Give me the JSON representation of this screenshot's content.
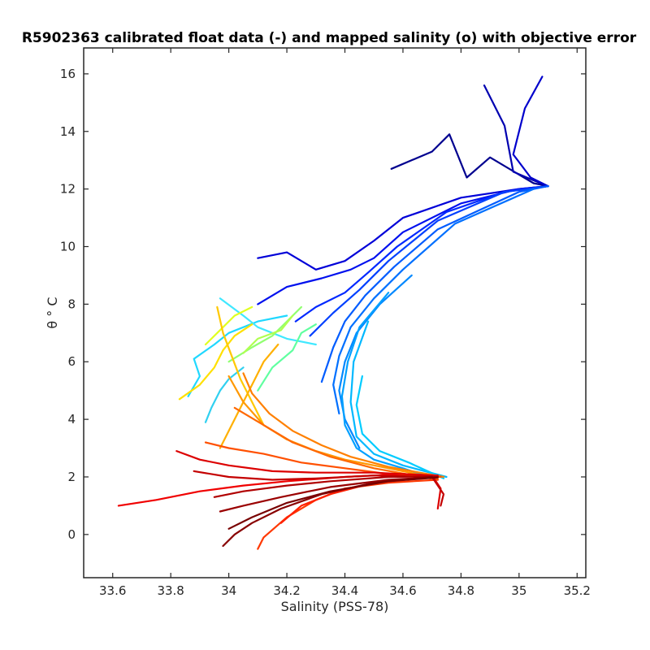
{
  "chart_data": {
    "type": "line",
    "title": "R5902363 calibrated float data (-) and mapped salinity (o) with objective error",
    "xlabel": "Salinity (PSS-78)",
    "ylabel": "θ ° C",
    "xlim": [
      33.5,
      35.23
    ],
    "ylim": [
      -1.5,
      16.9
    ],
    "xticks": [
      33.6,
      33.8,
      34,
      34.2,
      34.4,
      34.6,
      34.8,
      35,
      35.2
    ],
    "yticks": [
      0,
      2,
      4,
      6,
      8,
      10,
      12,
      14,
      16
    ],
    "grid": false,
    "legend": "none",
    "colormap": "jet",
    "series": [
      {
        "color": "#00008f",
        "points": [
          [
            34.56,
            12.7
          ],
          [
            34.7,
            13.3
          ],
          [
            34.76,
            13.9
          ],
          [
            34.82,
            12.4
          ],
          [
            34.9,
            13.1
          ],
          [
            35.0,
            12.5
          ],
          [
            35.05,
            12.2
          ],
          [
            35.1,
            12.1
          ]
        ]
      },
      {
        "color": "#0000b0",
        "points": [
          [
            34.88,
            15.6
          ],
          [
            34.95,
            14.2
          ],
          [
            34.98,
            12.6
          ],
          [
            35.05,
            12.3
          ],
          [
            35.1,
            12.1
          ]
        ]
      },
      {
        "color": "#0000cc",
        "points": [
          [
            35.08,
            15.9
          ],
          [
            35.02,
            14.8
          ],
          [
            34.98,
            13.2
          ],
          [
            35.04,
            12.4
          ],
          [
            35.1,
            12.1
          ]
        ]
      },
      {
        "color": "#0000d8",
        "points": [
          [
            34.1,
            9.6
          ],
          [
            34.2,
            9.8
          ],
          [
            34.3,
            9.2
          ],
          [
            34.4,
            9.5
          ],
          [
            34.5,
            10.2
          ],
          [
            34.6,
            11.0
          ],
          [
            34.8,
            11.7
          ],
          [
            35.0,
            12.0
          ],
          [
            35.1,
            12.1
          ]
        ]
      },
      {
        "color": "#0010ee",
        "points": [
          [
            34.1,
            8.0
          ],
          [
            34.2,
            8.6
          ],
          [
            34.32,
            8.9
          ],
          [
            34.42,
            9.2
          ],
          [
            34.5,
            9.6
          ],
          [
            34.6,
            10.5
          ],
          [
            34.8,
            11.5
          ],
          [
            35.0,
            12.0
          ],
          [
            35.1,
            12.1
          ]
        ]
      },
      {
        "color": "#0028ff",
        "points": [
          [
            34.23,
            7.4
          ],
          [
            34.3,
            7.9
          ],
          [
            34.4,
            8.4
          ],
          [
            34.48,
            9.1
          ],
          [
            34.58,
            10.0
          ],
          [
            34.75,
            11.2
          ],
          [
            34.95,
            11.9
          ],
          [
            35.1,
            12.1
          ]
        ]
      },
      {
        "color": "#0040ff",
        "points": [
          [
            34.28,
            6.9
          ],
          [
            34.36,
            7.7
          ],
          [
            34.45,
            8.5
          ],
          [
            34.55,
            9.5
          ],
          [
            34.72,
            10.9
          ],
          [
            34.95,
            11.9
          ],
          [
            35.1,
            12.1
          ]
        ]
      },
      {
        "color": "#005cff",
        "points": [
          [
            34.32,
            5.3
          ],
          [
            34.36,
            6.5
          ],
          [
            34.4,
            7.4
          ],
          [
            34.47,
            8.3
          ],
          [
            34.57,
            9.3
          ],
          [
            34.72,
            10.6
          ],
          [
            35.0,
            11.9
          ],
          [
            35.1,
            12.1
          ]
        ]
      },
      {
        "color": "#0070ff",
        "points": [
          [
            34.38,
            4.2
          ],
          [
            34.36,
            5.2
          ],
          [
            34.38,
            6.2
          ],
          [
            34.42,
            7.2
          ],
          [
            34.5,
            8.2
          ],
          [
            34.6,
            9.2
          ],
          [
            34.78,
            10.8
          ],
          [
            35.05,
            12.0
          ]
        ]
      },
      {
        "color": "#0088ff",
        "points": [
          [
            34.45,
            3.0
          ],
          [
            34.4,
            4.0
          ],
          [
            34.38,
            5.0
          ],
          [
            34.4,
            6.0
          ],
          [
            34.44,
            7.0
          ],
          [
            34.52,
            8.0
          ],
          [
            34.63,
            9.0
          ]
        ]
      },
      {
        "color": "#00a0ff",
        "points": [
          [
            34.72,
            1.9
          ],
          [
            34.6,
            2.3
          ],
          [
            34.5,
            2.6
          ],
          [
            34.44,
            3.0
          ],
          [
            34.4,
            3.8
          ],
          [
            34.39,
            4.8
          ],
          [
            34.41,
            6.0
          ],
          [
            34.45,
            7.2
          ],
          [
            34.55,
            8.4
          ]
        ]
      },
      {
        "color": "#00b8ff",
        "points": [
          [
            34.75,
            2.0
          ],
          [
            34.6,
            2.4
          ],
          [
            34.5,
            2.8
          ],
          [
            34.44,
            3.4
          ],
          [
            34.42,
            4.6
          ],
          [
            34.43,
            6.0
          ],
          [
            34.48,
            7.4
          ]
        ]
      },
      {
        "color": "#00ccff",
        "points": [
          [
            34.74,
            1.95
          ],
          [
            34.62,
            2.5
          ],
          [
            34.52,
            2.9
          ],
          [
            34.46,
            3.5
          ],
          [
            34.44,
            4.5
          ],
          [
            34.46,
            5.5
          ]
        ]
      },
      {
        "color": "#20d8ff",
        "points": [
          [
            33.86,
            4.8
          ],
          [
            33.9,
            5.5
          ],
          [
            33.88,
            6.1
          ],
          [
            33.95,
            6.6
          ],
          [
            34.0,
            7.0
          ],
          [
            34.1,
            7.4
          ],
          [
            34.2,
            7.6
          ]
        ]
      },
      {
        "color": "#40e8ff",
        "points": [
          [
            33.97,
            8.2
          ],
          [
            34.05,
            7.6
          ],
          [
            34.1,
            7.2
          ],
          [
            34.2,
            6.8
          ],
          [
            34.3,
            6.6
          ]
        ]
      },
      {
        "color": "#30d0f0",
        "points": [
          [
            33.92,
            3.9
          ],
          [
            33.94,
            4.4
          ],
          [
            33.97,
            5.0
          ],
          [
            34.0,
            5.4
          ],
          [
            34.05,
            5.8
          ]
        ]
      },
      {
        "color": "#60ffa0",
        "points": [
          [
            34.1,
            5.0
          ],
          [
            34.15,
            5.8
          ],
          [
            34.22,
            6.4
          ],
          [
            34.25,
            7.0
          ],
          [
            34.3,
            7.3
          ]
        ]
      },
      {
        "color": "#90ff70",
        "points": [
          [
            34.0,
            6.0
          ],
          [
            34.08,
            6.5
          ],
          [
            34.15,
            6.9
          ],
          [
            34.2,
            7.4
          ],
          [
            34.25,
            7.9
          ]
        ]
      },
      {
        "color": "#b0ff50",
        "points": [
          [
            34.05,
            6.3
          ],
          [
            34.1,
            6.8
          ],
          [
            34.18,
            7.1
          ],
          [
            34.22,
            7.6
          ]
        ]
      },
      {
        "color": "#e0ff20",
        "points": [
          [
            33.92,
            6.6
          ],
          [
            33.97,
            7.1
          ],
          [
            34.02,
            7.6
          ],
          [
            34.08,
            7.9
          ]
        ]
      },
      {
        "color": "#ffe000",
        "points": [
          [
            33.83,
            4.7
          ],
          [
            33.9,
            5.2
          ],
          [
            33.95,
            5.8
          ],
          [
            33.98,
            6.4
          ],
          [
            34.02,
            6.9
          ],
          [
            34.08,
            7.3
          ]
        ]
      },
      {
        "color": "#ffc800",
        "points": [
          [
            33.96,
            7.9
          ],
          [
            33.98,
            7.0
          ],
          [
            34.01,
            6.2
          ],
          [
            34.04,
            5.4
          ],
          [
            34.08,
            4.6
          ],
          [
            34.12,
            3.8
          ]
        ]
      },
      {
        "color": "#ffb000",
        "points": [
          [
            33.97,
            3.0
          ],
          [
            34.0,
            3.6
          ],
          [
            34.04,
            4.4
          ],
          [
            34.08,
            5.2
          ],
          [
            34.12,
            6.0
          ],
          [
            34.17,
            6.6
          ]
        ]
      },
      {
        "color": "#ff9800",
        "points": [
          [
            34.72,
            1.95
          ],
          [
            34.55,
            2.3
          ],
          [
            34.4,
            2.6
          ],
          [
            34.3,
            2.9
          ],
          [
            34.2,
            3.3
          ],
          [
            34.12,
            3.8
          ],
          [
            34.05,
            4.6
          ],
          [
            34.0,
            5.5
          ]
        ]
      },
      {
        "color": "#ff8000",
        "points": [
          [
            34.74,
            2.0
          ],
          [
            34.55,
            2.35
          ],
          [
            34.42,
            2.7
          ],
          [
            34.32,
            3.1
          ],
          [
            34.22,
            3.6
          ],
          [
            34.14,
            4.2
          ],
          [
            34.08,
            4.9
          ],
          [
            34.05,
            5.6
          ]
        ]
      },
      {
        "color": "#ff6800",
        "points": [
          [
            34.72,
            1.9
          ],
          [
            34.5,
            2.3
          ],
          [
            34.35,
            2.7
          ],
          [
            34.22,
            3.2
          ],
          [
            34.12,
            3.8
          ],
          [
            34.02,
            4.4
          ]
        ]
      },
      {
        "color": "#ff5000",
        "points": [
          [
            34.73,
            2.0
          ],
          [
            34.55,
            2.1
          ],
          [
            34.4,
            2.3
          ],
          [
            34.25,
            2.5
          ],
          [
            34.12,
            2.8
          ],
          [
            34.0,
            3.0
          ],
          [
            33.92,
            3.2
          ]
        ]
      },
      {
        "color": "#ff3800",
        "points": [
          [
            34.72,
            1.9
          ],
          [
            34.55,
            1.8
          ],
          [
            34.4,
            1.6
          ],
          [
            34.3,
            1.2
          ],
          [
            34.2,
            0.6
          ],
          [
            34.12,
            -0.1
          ],
          [
            34.1,
            -0.5
          ]
        ]
      },
      {
        "color": "#ff2000",
        "points": [
          [
            34.71,
            2.0
          ],
          [
            34.5,
            1.8
          ],
          [
            34.35,
            1.4
          ],
          [
            34.25,
            1.0
          ],
          [
            34.18,
            0.4
          ]
        ]
      },
      {
        "color": "#f00000",
        "points": [
          [
            33.62,
            1.0
          ],
          [
            33.75,
            1.2
          ],
          [
            33.9,
            1.5
          ],
          [
            34.05,
            1.7
          ],
          [
            34.2,
            1.85
          ],
          [
            34.4,
            2.0
          ],
          [
            34.6,
            2.1
          ],
          [
            34.72,
            2.05
          ]
        ]
      },
      {
        "color": "#dc0000",
        "points": [
          [
            33.82,
            2.9
          ],
          [
            33.9,
            2.6
          ],
          [
            34.0,
            2.4
          ],
          [
            34.15,
            2.2
          ],
          [
            34.3,
            2.15
          ],
          [
            34.5,
            2.15
          ],
          [
            34.7,
            2.05
          ],
          [
            34.73,
            1.6
          ],
          [
            34.72,
            0.9
          ]
        ]
      },
      {
        "color": "#c40000",
        "points": [
          [
            33.88,
            2.2
          ],
          [
            34.0,
            2.0
          ],
          [
            34.15,
            1.9
          ],
          [
            34.3,
            1.95
          ],
          [
            34.5,
            2.05
          ],
          [
            34.7,
            2.0
          ],
          [
            34.74,
            1.4
          ],
          [
            34.73,
            1.0
          ]
        ]
      },
      {
        "color": "#b00000",
        "points": [
          [
            33.95,
            1.3
          ],
          [
            34.05,
            1.5
          ],
          [
            34.2,
            1.7
          ],
          [
            34.35,
            1.85
          ],
          [
            34.55,
            2.0
          ],
          [
            34.72,
            2.02
          ]
        ]
      },
      {
        "color": "#9a0000",
        "points": [
          [
            33.97,
            0.8
          ],
          [
            34.05,
            1.0
          ],
          [
            34.18,
            1.3
          ],
          [
            34.35,
            1.65
          ],
          [
            34.55,
            1.9
          ],
          [
            34.72,
            2.0
          ]
        ]
      },
      {
        "color": "#880000",
        "points": [
          [
            33.98,
            -0.4
          ],
          [
            34.02,
            0.0
          ],
          [
            34.08,
            0.4
          ],
          [
            34.18,
            0.9
          ],
          [
            34.32,
            1.4
          ],
          [
            34.5,
            1.8
          ],
          [
            34.7,
            2.0
          ]
        ]
      },
      {
        "color": "#780000",
        "points": [
          [
            34.0,
            0.2
          ],
          [
            34.08,
            0.6
          ],
          [
            34.2,
            1.1
          ],
          [
            34.35,
            1.5
          ],
          [
            34.55,
            1.85
          ],
          [
            34.72,
            1.98
          ]
        ]
      }
    ]
  }
}
